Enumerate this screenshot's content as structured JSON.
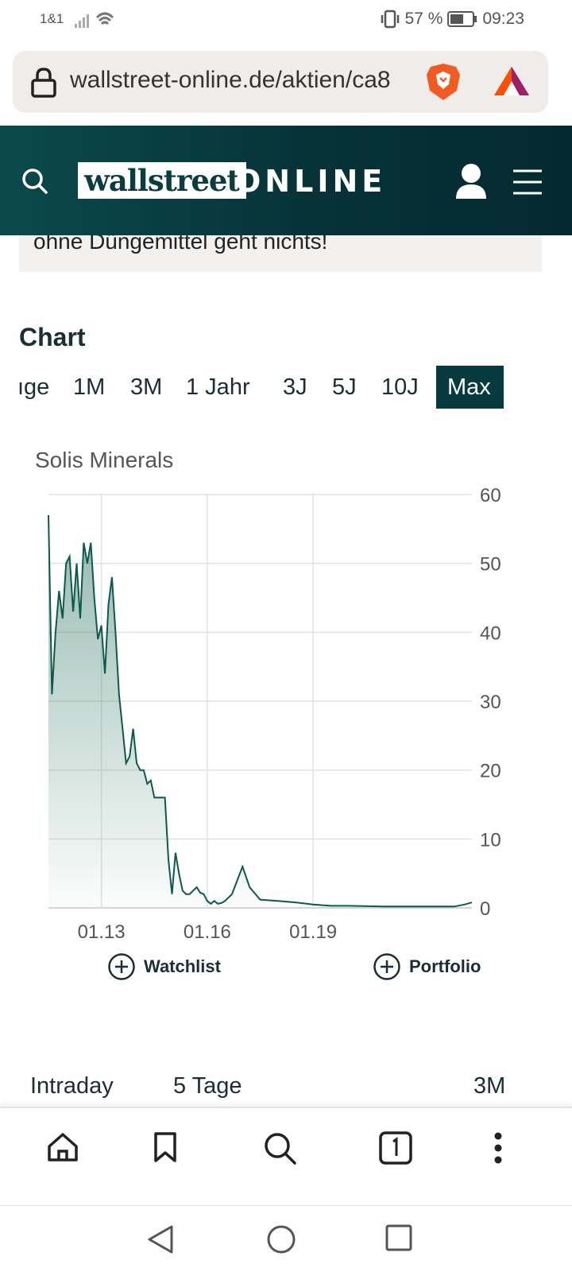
{
  "status_bar": {
    "carrier": "1&1",
    "battery": "57 %",
    "time": "09:23"
  },
  "url_bar": {
    "url": "wallstreet-online.de/aktien/ca8"
  },
  "site_header": {
    "logo_part1": "wallstreet",
    "logo_part2": "ONLINE"
  },
  "teaser": {
    "text": "ohne Düngemittel geht nichts!"
  },
  "chart_section": {
    "heading": "Chart",
    "range_tabs": [
      {
        "label": "ıge"
      },
      {
        "label": "1M"
      },
      {
        "label": "3M"
      },
      {
        "label": "1 Jahr"
      },
      {
        "label": "3J"
      },
      {
        "label": "5J"
      },
      {
        "label": "10J"
      },
      {
        "label": "Max"
      }
    ],
    "active_range": "Max",
    "watchlist_label": "Watchlist",
    "portfolio_label": "Portfolio"
  },
  "chart_data": {
    "type": "area",
    "title": "Solis Minerals",
    "xlabel": "",
    "ylabel": "",
    "ylim": [
      0,
      60
    ],
    "yticks": [
      0,
      10,
      20,
      30,
      40,
      50,
      60
    ],
    "xticks": [
      "01.13",
      "01.16",
      "01.19"
    ],
    "xlim": [
      2011.5,
      2023.5
    ],
    "grid": true,
    "legend": "none",
    "line_color": "#0b5a4a",
    "series": [
      {
        "x": [
          2011.5,
          2011.6,
          2011.7,
          2011.8,
          2011.9,
          2012.0,
          2012.1,
          2012.2,
          2012.3,
          2012.4,
          2012.5,
          2012.6,
          2012.7,
          2012.8,
          2012.9,
          2013.0,
          2013.1,
          2013.2,
          2013.3,
          2013.4,
          2013.5,
          2013.6,
          2013.7,
          2013.8,
          2013.9,
          2014.0,
          2014.1,
          2014.2,
          2014.3,
          2014.4,
          2014.5,
          2014.6,
          2014.7,
          2014.8,
          2014.9,
          2015.0,
          2015.1,
          2015.2,
          2015.3,
          2015.4,
          2015.5,
          2015.6,
          2015.7,
          2015.8,
          2015.9,
          2016.0,
          2016.1,
          2016.2,
          2016.3,
          2016.4,
          2016.5,
          2016.7,
          2017.0,
          2017.2,
          2017.5,
          2018.0,
          2018.5,
          2019.0,
          2019.5,
          2020.0,
          2021.0,
          2022.0,
          2023.0,
          2023.3,
          2023.5
        ],
        "y": [
          57,
          31,
          40,
          46,
          42,
          50,
          51,
          43,
          50,
          42,
          53,
          50,
          53,
          45,
          39,
          41,
          34,
          44,
          48,
          40,
          31,
          26,
          21,
          22,
          26,
          21,
          20,
          20,
          18,
          18.5,
          16,
          16,
          16,
          16,
          7,
          2,
          8,
          5,
          2.5,
          2,
          2,
          2.5,
          3,
          2.2,
          2,
          1,
          0.6,
          1,
          0.6,
          0.7,
          1,
          2,
          6,
          3,
          1.2,
          1,
          0.8,
          0.5,
          0.3,
          0.3,
          0.2,
          0.2,
          0.2,
          0.5,
          0.8
        ]
      }
    ]
  },
  "lower_tabs": [
    {
      "label": "Intraday"
    },
    {
      "label": "5 Tage"
    },
    {
      "label": "3M"
    }
  ]
}
